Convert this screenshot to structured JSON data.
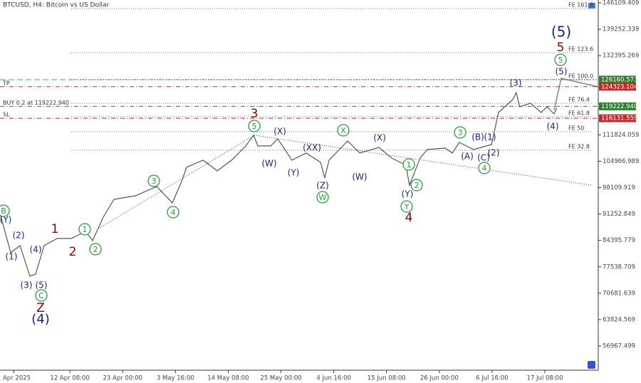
{
  "chart_data": {
    "type": "line",
    "title": "BTCUSD, H4:  Bitcoin vs US Dollar",
    "color": "#555555",
    "x": [
      -67,
      -15,
      30,
      78,
      106,
      147,
      210,
      279,
      348,
      382,
      434,
      486,
      590,
      693,
      769,
      814,
      838,
      918,
      987,
      1056,
      1125,
      1163,
      1184,
      1246,
      1280,
      1349,
      1418,
      1488,
      1508,
      1529,
      1619,
      1678,
      1771,
      1833,
      1902,
      1919,
      1971,
      2006,
      2092,
      2127,
      2161,
      2230,
      2317,
      2351,
      2420,
      2437,
      2454,
      2506,
      2558,
      2586,
      2620,
      2634
    ],
    "values": [
      91367,
      81196,
      83044,
      75092,
      75647,
      83044,
      84894,
      84894,
      86743,
      84339,
      90442,
      95066,
      95990,
      98395,
      94141,
      99689,
      103388,
      105237,
      102463,
      105237,
      108936,
      111710,
      108936,
      108936,
      110785,
      105237,
      107087,
      104682,
      100614,
      105237,
      110231,
      107087,
      108566,
      105792,
      103943,
      98764,
      105792,
      108011,
      108381,
      107087,
      109861,
      108011,
      109306,
      117628,
      120957,
      122807,
      119108,
      120032,
      117628,
      119108,
      117258,
      118738
    ],
    "xlim": [
      -67,
      2835
    ],
    "xticks": [
      {
        "value": 0,
        "label": "1 Apr 2025"
      },
      {
        "value": 272,
        "label": "12 Apr 08:00"
      },
      {
        "value": 528,
        "label": "23 Apr 00:00"
      },
      {
        "value": 784,
        "label": "3 May 16:00"
      },
      {
        "value": 1040,
        "label": "14 May 08:00"
      },
      {
        "value": 1296,
        "label": "25 May 00:00"
      },
      {
        "value": 1552,
        "label": "4 Jun 16:00"
      },
      {
        "value": 1808,
        "label": "15 Jun 08:00"
      },
      {
        "value": 2064,
        "label": "26 Jun 00:00"
      },
      {
        "value": 2320,
        "label": "6 Jul 16:00"
      },
      {
        "value": 2576,
        "label": "17 Jul 08:00"
      }
    ],
    "ylim": [
      50680,
      146850
    ],
    "yticks": [
      146109.409,
      139252.339,
      132395.269,
      111824.059,
      104966.989,
      98109.919,
      91252.849,
      84395.779,
      77538.709,
      70681.639,
      63824.569,
      56967.499
    ],
    "fib_levels": [
      {
        "label": "FE 161.8",
        "value": 144630
      },
      {
        "label": "FE 123.6",
        "value": 133163
      },
      {
        "label": "FE 100.0",
        "value": 126160
      },
      {
        "label": "FE 76.4",
        "value": 120032
      },
      {
        "label": "FE 61.8",
        "value": 116518
      },
      {
        "label": "FE 50",
        "value": 112634
      },
      {
        "label": "FE 32.8",
        "value": 107825
      }
    ],
    "price_markers": [
      {
        "value": 126160.573,
        "label": "126160.573",
        "color": "#2e7d32"
      }
    ],
    "orders": [
      {
        "name": "TP",
        "value": 124323.104,
        "label": "124323.104",
        "color": "#c62828"
      },
      {
        "name": "BUY 0.2 at 119222.940",
        "value": 119222.94,
        "label": "119222.940",
        "color": "#2e7d32"
      },
      {
        "name": "SL",
        "value": 116131.559,
        "label": "116131.559",
        "color": "#c62828"
      }
    ],
    "wave_colors": {
      "navy": "#1a237e",
      "green": "#2e9b3a",
      "red": "#8b0000"
    },
    "wave_labels": {
      "navy": [
        "(5)",
        "(5)",
        "(3)",
        "(4)",
        "(B)",
        "(1)",
        "(C)",
        "(2)",
        "(A)",
        "(X)",
        "(XX)",
        "(X)",
        "(W)",
        "(Y)",
        "(W)",
        "(Z)",
        "(Y)",
        "(Y)",
        "(2)",
        "(1)",
        "(4)",
        "(3)",
        "(5)",
        "(4)"
      ],
      "green": [
        "5",
        "5",
        "X",
        "3",
        "4",
        "1",
        "2",
        "W",
        "Y",
        "3",
        "4",
        "1",
        "2",
        "B",
        "C"
      ],
      "red": [
        "5",
        "3",
        "4",
        "1",
        "2",
        "Z"
      ]
    }
  }
}
